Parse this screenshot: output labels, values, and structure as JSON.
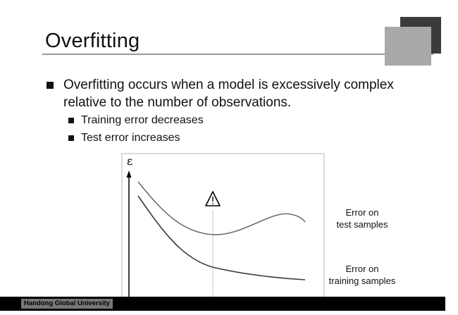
{
  "slide": {
    "title": "Overfitting",
    "bullets": [
      {
        "text": "Overfitting occurs when a model is excessively complex relative to the number of observations.",
        "sub": [
          "Training error decreases",
          "Test error increases"
        ]
      }
    ]
  },
  "diagram": {
    "y_axis_label": "ε",
    "annotations": {
      "test": [
        "Error on",
        "test samples"
      ],
      "train": [
        "Error on",
        "training samples"
      ]
    },
    "marker_icon": "warning-triangle-icon",
    "colors": {
      "test_curve": "#6d6d6d",
      "train_curve": "#3a3a3a",
      "marker_line": "#c9c9c9"
    }
  },
  "footer": {
    "institution": "Handong Global University"
  }
}
